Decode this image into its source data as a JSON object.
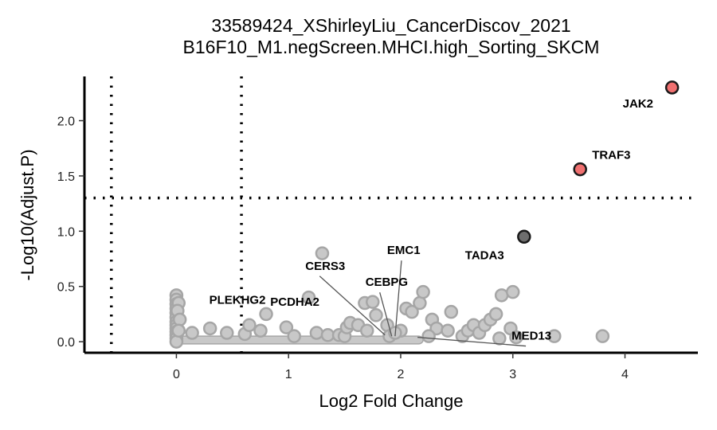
{
  "chart_data": {
    "type": "scatter",
    "title": "33589424_XShirleyLiu_CancerDiscov_2021",
    "subtitle": "B16F10_M1.negScreen.MHCI.high_Sorting_SKCM",
    "xlabel": "Log2 Fold Change",
    "ylabel": "-Log10(Adjust.P)",
    "xlim": [
      -0.82,
      4.65
    ],
    "ylim": [
      -0.1,
      2.4
    ],
    "xticks": [
      "0",
      "1",
      "2",
      "3",
      "4"
    ],
    "xtick_values": [
      0,
      1,
      2,
      3,
      4
    ],
    "yticks": [
      "0.0",
      "0.5",
      "1.0",
      "1.5",
      "2.0"
    ],
    "ytick_values": [
      0,
      0.5,
      1.0,
      1.5,
      2.0
    ],
    "thresholds": {
      "x": [
        -0.58,
        0.58
      ],
      "y": 1.3
    },
    "grid": false,
    "colors": {
      "significant": "#f07070",
      "highlight": "#2b2b2b",
      "background": "#c8c8c8",
      "background_stroke": "#a6a6a6"
    },
    "labeled_points": [
      {
        "gene": "JAK2",
        "x": 4.42,
        "y": 2.3,
        "group": "significant"
      },
      {
        "gene": "TRAF3",
        "x": 3.6,
        "y": 1.56,
        "group": "significant"
      },
      {
        "gene": "TADA3",
        "x": 3.1,
        "y": 0.95,
        "group": "highlight"
      },
      {
        "gene": "EMC1",
        "x": 1.95,
        "y": 0.05,
        "group": "background"
      },
      {
        "gene": "CERS3",
        "x": 1.86,
        "y": 0.06,
        "group": "background"
      },
      {
        "gene": "CEBPG",
        "x": 1.92,
        "y": 0.05,
        "group": "background"
      },
      {
        "gene": "PLEKHG2",
        "x": 0.47,
        "y": 0.27,
        "group": "background"
      },
      {
        "gene": "PCDHA2",
        "x": 1.1,
        "y": 0.1,
        "group": "background"
      },
      {
        "gene": "MED13",
        "x": 2.15,
        "y": 0.04,
        "group": "background"
      }
    ],
    "background_points": [
      [
        0,
        0.42
      ],
      [
        0,
        0.38
      ],
      [
        0,
        0.34
      ],
      [
        0,
        0.3
      ],
      [
        0,
        0.26
      ],
      [
        0,
        0.22
      ],
      [
        0,
        0.18
      ],
      [
        0,
        0.15
      ],
      [
        0,
        0.12
      ],
      [
        0,
        0.09
      ],
      [
        0,
        0.06
      ],
      [
        0,
        0.03
      ],
      [
        0,
        0.0
      ],
      [
        0.02,
        0.35
      ],
      [
        0.01,
        0.28
      ],
      [
        0.03,
        0.2
      ],
      [
        0.02,
        0.1
      ],
      [
        0.3,
        0.12
      ],
      [
        0.14,
        0.08
      ],
      [
        0.45,
        0.08
      ],
      [
        0.61,
        0.07
      ],
      [
        0.65,
        0.15
      ],
      [
        0.8,
        0.25
      ],
      [
        0.75,
        0.1
      ],
      [
        0.98,
        0.13
      ],
      [
        1.18,
        0.4
      ],
      [
        1.3,
        0.8
      ],
      [
        1.05,
        0.05
      ],
      [
        1.25,
        0.08
      ],
      [
        1.35,
        0.06
      ],
      [
        1.45,
        0.06
      ],
      [
        1.5,
        0.05
      ],
      [
        1.52,
        0.13
      ],
      [
        1.55,
        0.17
      ],
      [
        1.62,
        0.15
      ],
      [
        1.7,
        0.1
      ],
      [
        1.68,
        0.35
      ],
      [
        1.75,
        0.36
      ],
      [
        1.78,
        0.24
      ],
      [
        1.88,
        0.15
      ],
      [
        1.9,
        0.05
      ],
      [
        2.05,
        0.3
      ],
      [
        2.1,
        0.27
      ],
      [
        2.17,
        0.35
      ],
      [
        2.2,
        0.45
      ],
      [
        2.28,
        0.2
      ],
      [
        2.32,
        0.12
      ],
      [
        2.42,
        0.1
      ],
      [
        2.45,
        0.27
      ],
      [
        2.55,
        0.05
      ],
      [
        2.6,
        0.1
      ],
      [
        2.65,
        0.15
      ],
      [
        2.7,
        0.08
      ],
      [
        2.75,
        0.15
      ],
      [
        2.8,
        0.2
      ],
      [
        2.85,
        0.25
      ],
      [
        2.9,
        0.42
      ],
      [
        3.0,
        0.45
      ],
      [
        2.98,
        0.12
      ],
      [
        3.03,
        0.04
      ],
      [
        2.88,
        0.03
      ],
      [
        3.37,
        0.05
      ],
      [
        3.8,
        0.05
      ],
      [
        2.0,
        0.1
      ],
      [
        2.25,
        0.05
      ],
      [
        1.95,
        0.08
      ]
    ]
  }
}
